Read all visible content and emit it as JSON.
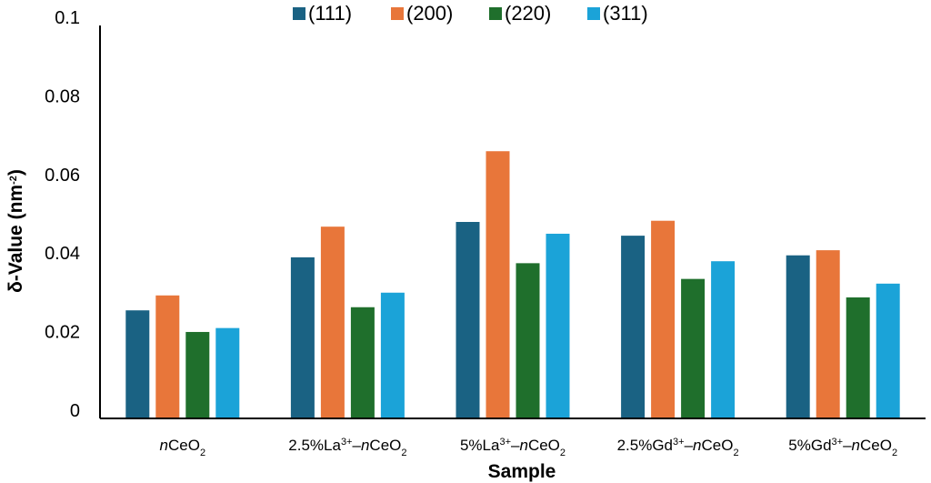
{
  "chart_data": {
    "type": "bar",
    "xlabel": "Sample",
    "ylabel": "δ-Value (nm-2)",
    "ylabel_parts": {
      "main": "δ-Value (nm",
      "sup": "-2",
      "close": ")"
    },
    "ylim": [
      0,
      0.1
    ],
    "yticks": [
      "0",
      "0.02",
      "0.04",
      "0.06",
      "0.08",
      "0.1"
    ],
    "grid": false,
    "legend_position": "top-center",
    "categories": [
      "nCeO2",
      "2.5%La3+–nCeO2",
      "5%La3+–nCeO2",
      "2.5%Gd3+–nCeO2",
      "5%Gd3+–nCeO2"
    ],
    "category_parts": [
      {
        "prefix": "",
        "ion": "",
        "sup": "",
        "dash": "",
        "italic": "n",
        "base": "CeO",
        "sub": "2"
      },
      {
        "prefix": "2.5%",
        "ion": "La",
        "sup": "3+",
        "dash": "–",
        "italic": "n",
        "base": "CeO",
        "sub": "2"
      },
      {
        "prefix": "5%",
        "ion": "La",
        "sup": "3+",
        "dash": "–",
        "italic": "n",
        "base": "CeO",
        "sub": "2"
      },
      {
        "prefix": "2.5%",
        "ion": "Gd",
        "sup": "3+",
        "dash": "–",
        "italic": "n",
        "base": "CeO",
        "sub": "2"
      },
      {
        "prefix": "5%",
        "ion": "Gd",
        "sup": "3+",
        "dash": "–",
        "italic": "n",
        "base": "CeO",
        "sub": "2"
      }
    ],
    "series": [
      {
        "name": "(111)",
        "color": "#1a6283",
        "values": [
          0.0275,
          0.041,
          0.05,
          0.0465,
          0.0415
        ]
      },
      {
        "name": "(200)",
        "color": "#e8763a",
        "values": [
          0.0313,
          0.0488,
          0.068,
          0.0503,
          0.0428
        ]
      },
      {
        "name": "(220)",
        "color": "#1f6f2c",
        "values": [
          0.022,
          0.0283,
          0.0395,
          0.0355,
          0.0308
        ]
      },
      {
        "name": "(311)",
        "color": "#1ba3d8",
        "values": [
          0.023,
          0.032,
          0.047,
          0.04,
          0.0343
        ]
      }
    ]
  }
}
